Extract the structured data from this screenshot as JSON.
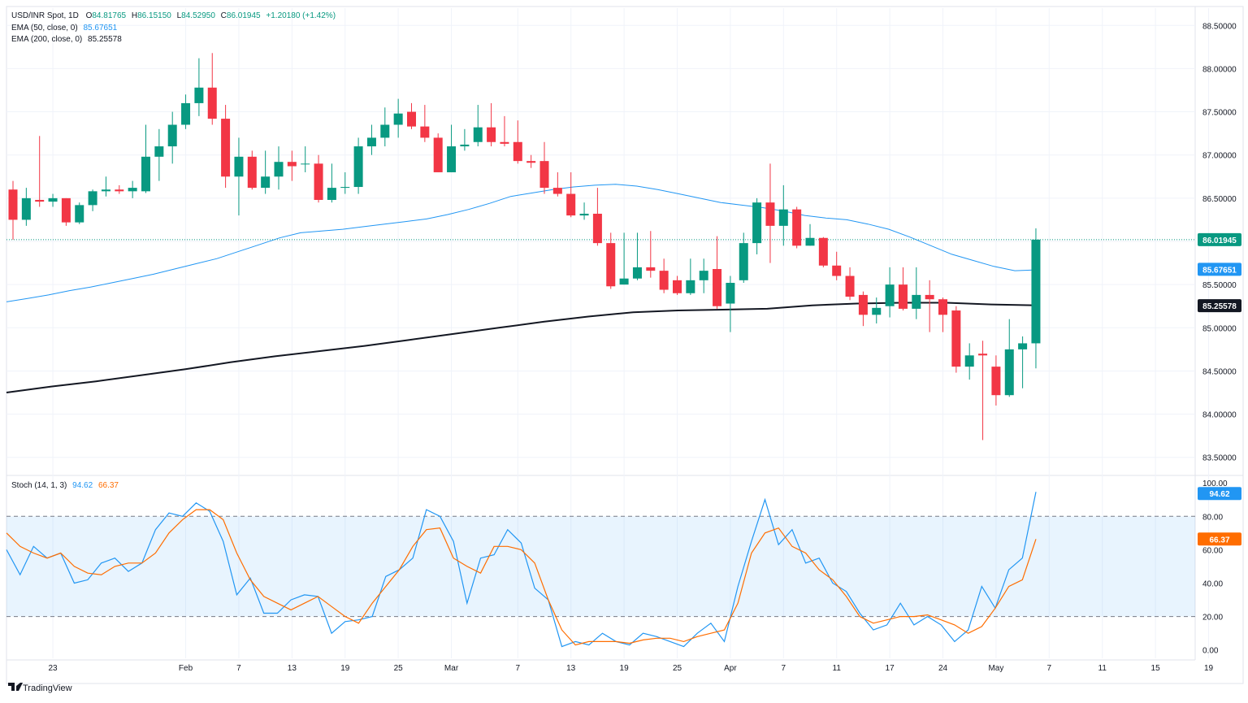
{
  "header": {
    "symbol_line": {
      "name": "USD/INR Spot, 1D",
      "o_label": "O",
      "o": "84.81765",
      "h_label": "H",
      "h": "86.15150",
      "l_label": "L",
      "l": "84.52950",
      "c_label": "C",
      "c": "86.01945",
      "chg": "+1.20180 (+1.42%)"
    },
    "ema50_line": {
      "name": "EMA (50, close, 0)",
      "value": "85.67651"
    },
    "ema200_line": {
      "name": "EMA (200, close, 0)",
      "value": "85.25578"
    },
    "stoch_line": {
      "name": "Stoch (14, 1, 3)",
      "k": "94.62",
      "d": "66.37"
    }
  },
  "branding": {
    "logo_text": "TradingView"
  },
  "colors": {
    "up": "#089981",
    "down": "#f23645",
    "ema50": "#2196f3",
    "ema200": "#131722",
    "stoch_k": "#2196f3",
    "stoch_d": "#ff6d00",
    "text": "#131722",
    "grid": "#f0f3fa"
  },
  "chart_data": [
    {
      "type": "candlestick",
      "title": "USD/INR Spot, 1D",
      "y_range": [
        83.3,
        88.7
      ],
      "y_ticks": [
        "83.50000",
        "84.00000",
        "84.50000",
        "85.00000",
        "85.50000",
        "86.00000",
        "86.50000",
        "87.00000",
        "87.50000",
        "88.00000",
        "88.50000"
      ],
      "x_ticks": [
        "23",
        "Feb",
        "7",
        "13",
        "19",
        "25",
        "Mar",
        "7",
        "13",
        "19",
        "25",
        "Apr",
        "7",
        "11",
        "17",
        "24",
        "May",
        "7",
        "11",
        "15",
        "19"
      ],
      "candles": [
        {
          "o": 86.6,
          "h": 86.7,
          "l": 86.02,
          "c": 86.25
        },
        {
          "o": 86.25,
          "h": 86.62,
          "l": 86.18,
          "c": 86.5
        },
        {
          "o": 86.48,
          "h": 87.22,
          "l": 86.4,
          "c": 86.46
        },
        {
          "o": 86.46,
          "h": 86.55,
          "l": 86.4,
          "c": 86.5
        },
        {
          "o": 86.5,
          "h": 86.5,
          "l": 86.18,
          "c": 86.22
        },
        {
          "o": 86.22,
          "h": 86.45,
          "l": 86.2,
          "c": 86.42
        },
        {
          "o": 86.42,
          "h": 86.6,
          "l": 86.35,
          "c": 86.58
        },
        {
          "o": 86.58,
          "h": 86.75,
          "l": 86.52,
          "c": 86.6
        },
        {
          "o": 86.6,
          "h": 86.65,
          "l": 86.55,
          "c": 86.58
        },
        {
          "o": 86.58,
          "h": 86.7,
          "l": 86.5,
          "c": 86.62
        },
        {
          "o": 86.58,
          "h": 87.35,
          "l": 86.56,
          "c": 86.98
        },
        {
          "o": 86.98,
          "h": 87.3,
          "l": 86.7,
          "c": 87.1
        },
        {
          "o": 87.1,
          "h": 87.5,
          "l": 86.9,
          "c": 87.35
        },
        {
          "o": 87.35,
          "h": 87.7,
          "l": 87.3,
          "c": 87.6
        },
        {
          "o": 87.6,
          "h": 88.12,
          "l": 87.45,
          "c": 87.78
        },
        {
          "o": 87.78,
          "h": 88.18,
          "l": 87.35,
          "c": 87.42
        },
        {
          "o": 87.42,
          "h": 87.58,
          "l": 86.62,
          "c": 86.75
        },
        {
          "o": 86.75,
          "h": 87.2,
          "l": 86.3,
          "c": 86.98
        },
        {
          "o": 86.98,
          "h": 87.05,
          "l": 86.6,
          "c": 86.62
        },
        {
          "o": 86.62,
          "h": 87.05,
          "l": 86.55,
          "c": 86.75
        },
        {
          "o": 86.75,
          "h": 87.1,
          "l": 86.6,
          "c": 86.92
        },
        {
          "o": 86.92,
          "h": 87.05,
          "l": 86.7,
          "c": 86.87
        },
        {
          "o": 86.9,
          "h": 87.1,
          "l": 86.8,
          "c": 86.9
        },
        {
          "o": 86.9,
          "h": 87.0,
          "l": 86.45,
          "c": 86.48
        },
        {
          "o": 86.48,
          "h": 86.9,
          "l": 86.45,
          "c": 86.62
        },
        {
          "o": 86.62,
          "h": 86.8,
          "l": 86.55,
          "c": 86.63
        },
        {
          "o": 86.63,
          "h": 87.2,
          "l": 86.55,
          "c": 87.1
        },
        {
          "o": 87.1,
          "h": 87.35,
          "l": 87.0,
          "c": 87.2
        },
        {
          "o": 87.2,
          "h": 87.55,
          "l": 87.1,
          "c": 87.35
        },
        {
          "o": 87.35,
          "h": 87.65,
          "l": 87.2,
          "c": 87.48
        },
        {
          "o": 87.5,
          "h": 87.6,
          "l": 87.3,
          "c": 87.33
        },
        {
          "o": 87.33,
          "h": 87.58,
          "l": 87.15,
          "c": 87.2
        },
        {
          "o": 87.2,
          "h": 87.25,
          "l": 86.8,
          "c": 86.8
        },
        {
          "o": 86.8,
          "h": 87.35,
          "l": 86.8,
          "c": 87.1
        },
        {
          "o": 87.1,
          "h": 87.3,
          "l": 87.05,
          "c": 87.12
        },
        {
          "o": 87.15,
          "h": 87.58,
          "l": 87.1,
          "c": 87.32
        },
        {
          "o": 87.32,
          "h": 87.6,
          "l": 87.1,
          "c": 87.15
        },
        {
          "o": 87.15,
          "h": 87.45,
          "l": 87.1,
          "c": 87.13
        },
        {
          "o": 87.15,
          "h": 87.4,
          "l": 86.9,
          "c": 86.93
        },
        {
          "o": 86.93,
          "h": 87.0,
          "l": 86.85,
          "c": 86.91
        },
        {
          "o": 86.93,
          "h": 87.15,
          "l": 86.55,
          "c": 86.62
        },
        {
          "o": 86.62,
          "h": 86.8,
          "l": 86.52,
          "c": 86.55
        },
        {
          "o": 86.55,
          "h": 86.8,
          "l": 86.28,
          "c": 86.3
        },
        {
          "o": 86.3,
          "h": 86.45,
          "l": 86.25,
          "c": 86.32
        },
        {
          "o": 86.32,
          "h": 86.62,
          "l": 85.95,
          "c": 85.98
        },
        {
          "o": 85.98,
          "h": 86.1,
          "l": 85.45,
          "c": 85.48
        },
        {
          "o": 85.5,
          "h": 86.1,
          "l": 85.5,
          "c": 85.57
        },
        {
          "o": 85.57,
          "h": 86.1,
          "l": 85.55,
          "c": 85.7
        },
        {
          "o": 85.7,
          "h": 86.12,
          "l": 85.58,
          "c": 85.66
        },
        {
          "o": 85.66,
          "h": 85.8,
          "l": 85.4,
          "c": 85.44
        },
        {
          "o": 85.55,
          "h": 85.6,
          "l": 85.38,
          "c": 85.4
        },
        {
          "o": 85.4,
          "h": 85.8,
          "l": 85.38,
          "c": 85.55
        },
        {
          "o": 85.55,
          "h": 85.8,
          "l": 85.4,
          "c": 85.66
        },
        {
          "o": 85.68,
          "h": 86.06,
          "l": 85.22,
          "c": 85.25
        },
        {
          "o": 85.28,
          "h": 85.6,
          "l": 84.95,
          "c": 85.52
        },
        {
          "o": 85.55,
          "h": 86.1,
          "l": 85.52,
          "c": 85.98
        },
        {
          "o": 85.98,
          "h": 86.5,
          "l": 85.85,
          "c": 86.45
        },
        {
          "o": 86.45,
          "h": 86.9,
          "l": 85.75,
          "c": 86.18
        },
        {
          "o": 86.18,
          "h": 86.65,
          "l": 85.95,
          "c": 86.37
        },
        {
          "o": 86.37,
          "h": 86.4,
          "l": 85.92,
          "c": 85.95
        },
        {
          "o": 85.95,
          "h": 86.2,
          "l": 85.95,
          "c": 86.04
        },
        {
          "o": 86.04,
          "h": 86.05,
          "l": 85.7,
          "c": 85.72
        },
        {
          "o": 85.72,
          "h": 85.88,
          "l": 85.55,
          "c": 85.6
        },
        {
          "o": 85.6,
          "h": 85.7,
          "l": 85.32,
          "c": 85.36
        },
        {
          "o": 85.38,
          "h": 85.42,
          "l": 85.02,
          "c": 85.15
        },
        {
          "o": 85.15,
          "h": 85.35,
          "l": 85.05,
          "c": 85.23
        },
        {
          "o": 85.25,
          "h": 85.7,
          "l": 85.12,
          "c": 85.5
        },
        {
          "o": 85.5,
          "h": 85.7,
          "l": 85.2,
          "c": 85.22
        },
        {
          "o": 85.22,
          "h": 85.7,
          "l": 85.1,
          "c": 85.38
        },
        {
          "o": 85.38,
          "h": 85.55,
          "l": 84.95,
          "c": 85.33
        },
        {
          "o": 85.33,
          "h": 85.35,
          "l": 84.95,
          "c": 85.15
        },
        {
          "o": 85.2,
          "h": 85.25,
          "l": 84.48,
          "c": 84.55
        },
        {
          "o": 84.55,
          "h": 84.82,
          "l": 84.4,
          "c": 84.68
        },
        {
          "o": 84.7,
          "h": 84.85,
          "l": 83.7,
          "c": 84.68
        },
        {
          "o": 84.55,
          "h": 84.68,
          "l": 84.1,
          "c": 84.22
        },
        {
          "o": 84.22,
          "h": 85.1,
          "l": 84.2,
          "c": 84.75
        },
        {
          "o": 84.75,
          "h": 84.9,
          "l": 84.3,
          "c": 84.82
        },
        {
          "o": 84.82,
          "h": 86.15,
          "l": 84.53,
          "c": 86.02
        }
      ],
      "ema50": [
        85.3,
        85.34,
        85.38,
        85.43,
        85.47,
        85.52,
        85.57,
        85.62,
        85.68,
        85.74,
        85.8,
        85.88,
        85.96,
        86.04,
        86.1,
        86.12,
        86.14,
        86.17,
        86.2,
        86.23,
        86.26,
        86.31,
        86.37,
        86.44,
        86.52,
        86.56,
        86.6,
        86.63,
        86.65,
        86.66,
        86.64,
        86.6,
        86.55,
        86.5,
        86.45,
        86.42,
        86.39,
        86.35,
        86.3,
        86.27,
        86.25,
        86.2,
        86.14,
        86.05,
        85.95,
        85.85,
        85.78,
        85.71,
        85.66,
        85.67
      ],
      "ema50_start_index": 0,
      "ema50_step": 1.6,
      "ema200": [
        84.25,
        84.32,
        84.38,
        84.45,
        84.52,
        84.6,
        84.67,
        84.73,
        84.79,
        84.86,
        84.93,
        85.0,
        85.07,
        85.13,
        85.18,
        85.2,
        85.21,
        85.22,
        85.26,
        85.28,
        85.29,
        85.29,
        85.27,
        85.26
      ],
      "last_price_label": "86.01945",
      "ema50_label": "85.67651",
      "ema200_label": "85.25578"
    },
    {
      "type": "line",
      "title": "Stoch (14, 1, 3)",
      "y_range": [
        -5,
        103
      ],
      "y_ticks": [
        "0.00",
        "20.00",
        "40.00",
        "60.00",
        "80.00",
        "100.00"
      ],
      "bands": [
        20,
        80
      ],
      "series": [
        {
          "name": "%K",
          "values": [
            60,
            45,
            62,
            55,
            58,
            40,
            42,
            52,
            55,
            47,
            52,
            72,
            82,
            80,
            88,
            83,
            65,
            33,
            43,
            22,
            22,
            30,
            33,
            32,
            10,
            17,
            18,
            20,
            44,
            48,
            55,
            84,
            80,
            65,
            28,
            55,
            57,
            72,
            64,
            37,
            30,
            2,
            5,
            3,
            10,
            5,
            3,
            10,
            8,
            5,
            2,
            10,
            16,
            5,
            38,
            65,
            90,
            63,
            72,
            52,
            55,
            40,
            35,
            22,
            12,
            15,
            28,
            15,
            20,
            15,
            5,
            12,
            38,
            25,
            48,
            55,
            94.62
          ]
        },
        {
          "name": "%D",
          "values": [
            70,
            62,
            58,
            55,
            58,
            50,
            46,
            45,
            50,
            52,
            52,
            58,
            70,
            78,
            84,
            84,
            78,
            58,
            42,
            32,
            28,
            24,
            28,
            32,
            26,
            20,
            16,
            28,
            38,
            48,
            62,
            72,
            73,
            55,
            50,
            46,
            62,
            62,
            60,
            52,
            30,
            12,
            3,
            5,
            5,
            5,
            4,
            6,
            7,
            7,
            5,
            8,
            10,
            12,
            28,
            58,
            70,
            73,
            62,
            58,
            48,
            42,
            32,
            20,
            16,
            18,
            20,
            20,
            21,
            18,
            15,
            10,
            14,
            25,
            38,
            42,
            66.37
          ]
        },
        {
          "name": "K_label",
          "values": []
        }
      ],
      "k_label": "94.62",
      "d_label": "66.37"
    }
  ]
}
